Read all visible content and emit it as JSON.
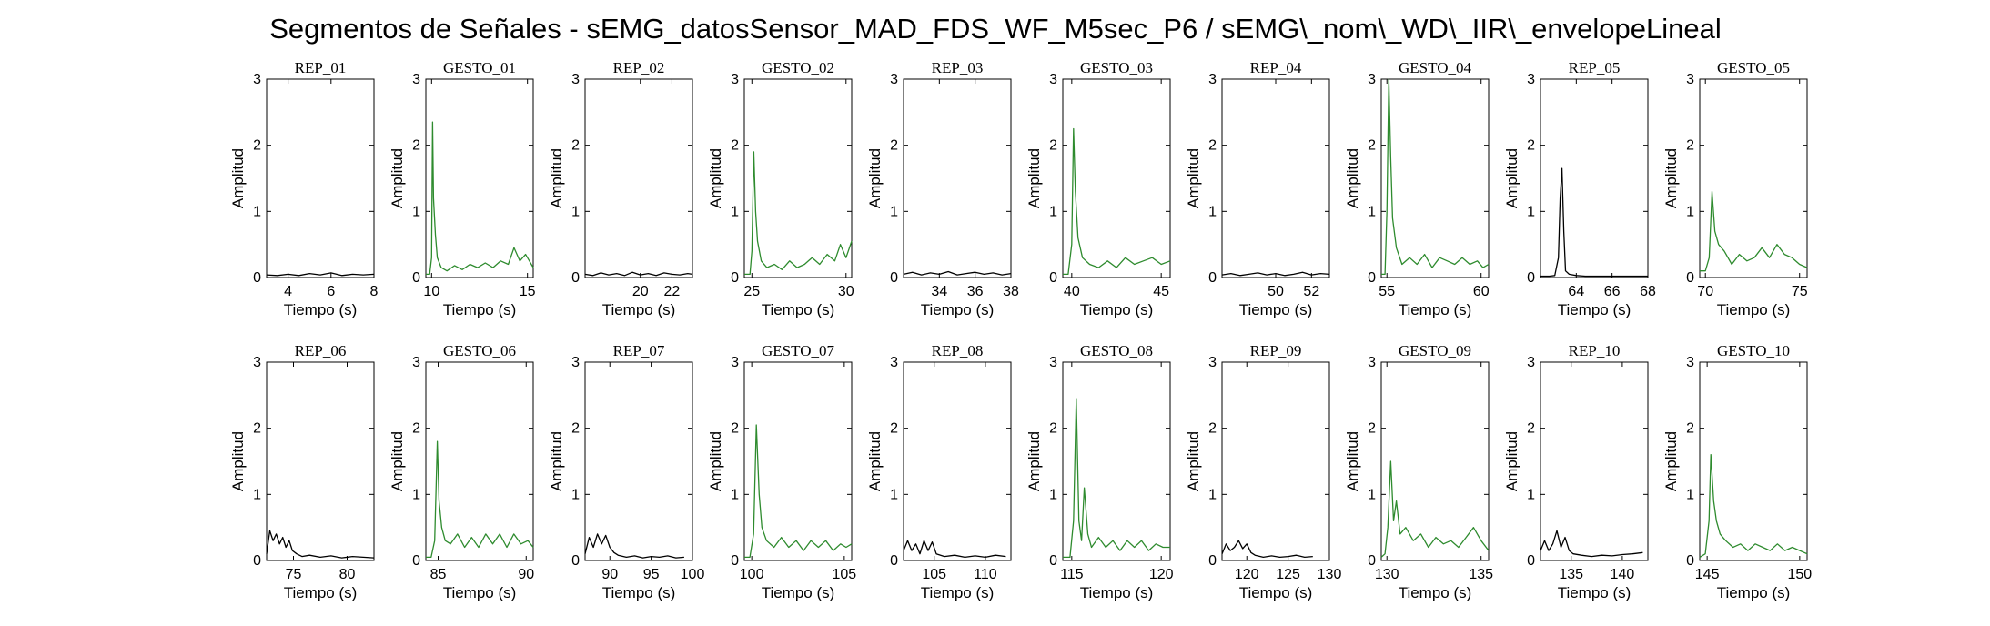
{
  "chart_data": {
    "type": "line",
    "title": "Segmentos de Señales - sEMG_datosSensor_MAD_FDS_WF_M5sec_P6 / sEMG\\_nom\\_WD\\_IIR\\_envelopeLineal",
    "xlabel": "Tiempo (s)",
    "ylabel": "Amplitud",
    "ylim": [
      0,
      3
    ],
    "yticks": [
      "0",
      "1",
      "2",
      "3"
    ],
    "grid": false,
    "colors": {
      "rep": "#000000",
      "gesto": "#2e8b2e",
      "axis": "#000000"
    },
    "panels": [
      {
        "title": "REP_01",
        "kind": "rep",
        "xlim": [
          3,
          8
        ],
        "xticks": [
          4,
          6,
          8
        ],
        "x": [
          3.0,
          3.5,
          4.0,
          4.5,
          5.0,
          5.5,
          6.0,
          6.5,
          7.0,
          7.5,
          8.0
        ],
        "y": [
          0.04,
          0.03,
          0.05,
          0.03,
          0.06,
          0.04,
          0.07,
          0.03,
          0.05,
          0.04,
          0.05
        ]
      },
      {
        "title": "GESTO_01",
        "kind": "gesto",
        "xlim": [
          9.7,
          15.3
        ],
        "xticks": [
          10,
          15
        ],
        "x": [
          9.7,
          9.9,
          10.0,
          10.05,
          10.1,
          10.2,
          10.3,
          10.5,
          10.8,
          11.2,
          11.6,
          12.0,
          12.4,
          12.8,
          13.2,
          13.6,
          14.0,
          14.3,
          14.6,
          14.9,
          15.3
        ],
        "y": [
          0.05,
          0.05,
          0.3,
          2.35,
          1.2,
          0.65,
          0.3,
          0.15,
          0.1,
          0.18,
          0.12,
          0.2,
          0.15,
          0.22,
          0.15,
          0.25,
          0.2,
          0.45,
          0.25,
          0.35,
          0.15
        ]
      },
      {
        "title": "REP_02",
        "kind": "rep",
        "xlim": [
          16.5,
          23.3
        ],
        "xticks": [
          20,
          22
        ],
        "x": [
          16.5,
          17.0,
          17.5,
          18.0,
          18.5,
          19.0,
          19.5,
          20.0,
          20.5,
          21.0,
          21.5,
          22.0,
          22.5,
          23.0,
          23.3
        ],
        "y": [
          0.05,
          0.03,
          0.07,
          0.04,
          0.06,
          0.03,
          0.08,
          0.04,
          0.06,
          0.03,
          0.07,
          0.05,
          0.04,
          0.06,
          0.05
        ]
      },
      {
        "title": "GESTO_02",
        "kind": "gesto",
        "xlim": [
          24.6,
          30.3
        ],
        "xticks": [
          25,
          30
        ],
        "x": [
          24.6,
          24.9,
          25.0,
          25.1,
          25.2,
          25.3,
          25.5,
          25.8,
          26.2,
          26.6,
          27.0,
          27.4,
          27.8,
          28.2,
          28.6,
          29.0,
          29.4,
          29.7,
          30.0,
          30.3
        ],
        "y": [
          0.05,
          0.05,
          0.4,
          1.9,
          1.0,
          0.55,
          0.25,
          0.15,
          0.2,
          0.12,
          0.25,
          0.15,
          0.2,
          0.3,
          0.2,
          0.35,
          0.25,
          0.5,
          0.3,
          0.55
        ]
      },
      {
        "title": "REP_03",
        "kind": "rep",
        "xlim": [
          32,
          38
        ],
        "xticks": [
          34,
          36,
          38
        ],
        "x": [
          32.0,
          32.5,
          33.0,
          33.5,
          34.0,
          34.5,
          35.0,
          35.5,
          36.0,
          36.5,
          37.0,
          37.5,
          38.0
        ],
        "y": [
          0.05,
          0.08,
          0.04,
          0.07,
          0.05,
          0.09,
          0.04,
          0.06,
          0.08,
          0.05,
          0.07,
          0.04,
          0.06
        ]
      },
      {
        "title": "GESTO_03",
        "kind": "gesto",
        "xlim": [
          39.5,
          45.5
        ],
        "xticks": [
          40,
          45
        ],
        "x": [
          39.5,
          39.8,
          40.0,
          40.1,
          40.2,
          40.35,
          40.6,
          41.0,
          41.5,
          42.0,
          42.5,
          43.0,
          43.5,
          44.0,
          44.5,
          45.0,
          45.5
        ],
        "y": [
          0.05,
          0.05,
          0.5,
          2.25,
          1.3,
          0.6,
          0.3,
          0.2,
          0.15,
          0.25,
          0.15,
          0.3,
          0.2,
          0.25,
          0.3,
          0.2,
          0.25
        ]
      },
      {
        "title": "REP_04",
        "kind": "rep",
        "xlim": [
          47,
          53
        ],
        "xticks": [
          50,
          52
        ],
        "x": [
          47.0,
          47.5,
          48.0,
          48.5,
          49.0,
          49.5,
          50.0,
          50.5,
          51.0,
          51.5,
          52.0,
          52.5,
          53.0
        ],
        "y": [
          0.04,
          0.06,
          0.03,
          0.05,
          0.07,
          0.04,
          0.06,
          0.03,
          0.05,
          0.08,
          0.04,
          0.06,
          0.05
        ]
      },
      {
        "title": "GESTO_04",
        "kind": "gesto",
        "xlim": [
          54.7,
          60.4
        ],
        "xticks": [
          55,
          60
        ],
        "x": [
          54.7,
          54.9,
          55.0,
          55.1,
          55.2,
          55.3,
          55.5,
          55.8,
          56.2,
          56.6,
          57.0,
          57.4,
          57.8,
          58.2,
          58.6,
          59.0,
          59.4,
          59.8,
          60.1,
          60.4
        ],
        "y": [
          0.05,
          0.05,
          1.0,
          3.0,
          1.8,
          0.9,
          0.45,
          0.2,
          0.3,
          0.2,
          0.35,
          0.15,
          0.3,
          0.25,
          0.2,
          0.3,
          0.2,
          0.25,
          0.15,
          0.2
        ]
      },
      {
        "title": "REP_05",
        "kind": "rep",
        "xlim": [
          62,
          68
        ],
        "xticks": [
          64,
          66,
          68
        ],
        "x": [
          62.0,
          62.5,
          62.8,
          63.0,
          63.1,
          63.2,
          63.3,
          63.4,
          63.6,
          64.0,
          64.5,
          65.0,
          66.0,
          67.0,
          68.0
        ],
        "y": [
          0.02,
          0.02,
          0.03,
          0.3,
          1.2,
          1.65,
          0.7,
          0.1,
          0.05,
          0.03,
          0.02,
          0.02,
          0.02,
          0.02,
          0.02
        ]
      },
      {
        "title": "GESTO_05",
        "kind": "gesto",
        "xlim": [
          69.7,
          75.4
        ],
        "xticks": [
          70,
          75
        ],
        "x": [
          69.7,
          70.0,
          70.2,
          70.35,
          70.5,
          70.7,
          71.0,
          71.4,
          71.8,
          72.2,
          72.6,
          73.0,
          73.4,
          73.8,
          74.2,
          74.6,
          75.0,
          75.4
        ],
        "y": [
          0.1,
          0.1,
          0.3,
          1.3,
          0.7,
          0.5,
          0.4,
          0.2,
          0.35,
          0.25,
          0.3,
          0.45,
          0.3,
          0.5,
          0.35,
          0.3,
          0.2,
          0.15
        ]
      },
      {
        "title": "REP_06",
        "kind": "rep",
        "xlim": [
          72.5,
          82.5
        ],
        "xticks": [
          75,
          80
        ],
        "x": [
          72.5,
          72.8,
          73.1,
          73.4,
          73.7,
          74.0,
          74.3,
          74.6,
          74.9,
          75.3,
          75.8,
          76.5,
          77.5,
          78.5,
          79.5,
          80.5,
          81.5,
          82.5
        ],
        "y": [
          0.1,
          0.45,
          0.3,
          0.4,
          0.25,
          0.35,
          0.2,
          0.3,
          0.15,
          0.1,
          0.06,
          0.08,
          0.05,
          0.07,
          0.04,
          0.06,
          0.05,
          0.04
        ]
      },
      {
        "title": "GESTO_06",
        "kind": "gesto",
        "xlim": [
          84.3,
          90.4
        ],
        "xticks": [
          85,
          90
        ],
        "x": [
          84.3,
          84.6,
          84.8,
          84.95,
          85.05,
          85.2,
          85.4,
          85.7,
          86.1,
          86.5,
          86.9,
          87.3,
          87.7,
          88.1,
          88.5,
          88.9,
          89.3,
          89.7,
          90.1,
          90.4
        ],
        "y": [
          0.05,
          0.05,
          0.3,
          1.8,
          0.9,
          0.5,
          0.3,
          0.25,
          0.4,
          0.2,
          0.35,
          0.2,
          0.4,
          0.25,
          0.4,
          0.2,
          0.4,
          0.25,
          0.3,
          0.2
        ]
      },
      {
        "title": "REP_07",
        "kind": "rep",
        "xlim": [
          87,
          100
        ],
        "xticks": [
          90,
          95,
          100
        ],
        "x": [
          87.0,
          87.5,
          88.0,
          88.5,
          89.0,
          89.5,
          90.0,
          90.5,
          91.0,
          92.0,
          93.0,
          94.0,
          95.0,
          96.0,
          97.0,
          98.0,
          99.0
        ],
        "y": [
          0.1,
          0.35,
          0.2,
          0.4,
          0.25,
          0.38,
          0.2,
          0.12,
          0.08,
          0.05,
          0.07,
          0.04,
          0.06,
          0.05,
          0.07,
          0.04,
          0.05
        ]
      },
      {
        "title": "GESTO_07",
        "kind": "gesto",
        "xlim": [
          99.6,
          105.4
        ],
        "xticks": [
          100,
          105
        ],
        "x": [
          99.6,
          99.9,
          100.1,
          100.25,
          100.4,
          100.55,
          100.8,
          101.2,
          101.6,
          102.0,
          102.4,
          102.8,
          103.2,
          103.6,
          104.0,
          104.4,
          104.8,
          105.1,
          105.4
        ],
        "y": [
          0.05,
          0.05,
          0.4,
          2.05,
          1.0,
          0.5,
          0.3,
          0.2,
          0.35,
          0.2,
          0.3,
          0.15,
          0.3,
          0.2,
          0.3,
          0.15,
          0.25,
          0.2,
          0.25
        ]
      },
      {
        "title": "REP_08",
        "kind": "rep",
        "xlim": [
          102,
          112.5
        ],
        "xticks": [
          105,
          110
        ],
        "x": [
          102.0,
          102.4,
          102.8,
          103.2,
          103.6,
          104.0,
          104.4,
          104.8,
          105.2,
          106.0,
          107.0,
          108.0,
          109.0,
          110.0,
          111.0,
          112.0
        ],
        "y": [
          0.15,
          0.3,
          0.15,
          0.25,
          0.1,
          0.3,
          0.15,
          0.28,
          0.1,
          0.06,
          0.08,
          0.05,
          0.07,
          0.05,
          0.08,
          0.06
        ]
      },
      {
        "title": "GESTO_08",
        "kind": "gesto",
        "xlim": [
          114.5,
          120.5
        ],
        "xticks": [
          115,
          120
        ],
        "x": [
          114.5,
          114.9,
          115.1,
          115.25,
          115.4,
          115.55,
          115.7,
          115.9,
          116.1,
          116.5,
          116.9,
          117.3,
          117.7,
          118.1,
          118.5,
          118.9,
          119.3,
          119.7,
          120.1,
          120.5
        ],
        "y": [
          0.05,
          0.05,
          0.6,
          2.45,
          0.6,
          0.3,
          1.1,
          0.4,
          0.2,
          0.35,
          0.2,
          0.3,
          0.15,
          0.3,
          0.2,
          0.3,
          0.15,
          0.25,
          0.2,
          0.2
        ]
      },
      {
        "title": "REP_09",
        "kind": "rep",
        "xlim": [
          117,
          130
        ],
        "xticks": [
          120,
          125,
          130
        ],
        "x": [
          117.0,
          117.5,
          118.0,
          118.5,
          119.0,
          119.5,
          120.0,
          120.5,
          121.0,
          122.0,
          123.0,
          124.0,
          125.0,
          126.0,
          127.0,
          128.0
        ],
        "y": [
          0.1,
          0.25,
          0.15,
          0.2,
          0.3,
          0.18,
          0.25,
          0.12,
          0.08,
          0.05,
          0.07,
          0.05,
          0.06,
          0.08,
          0.05,
          0.06
        ]
      },
      {
        "title": "GESTO_09",
        "kind": "gesto",
        "xlim": [
          129.7,
          135.4
        ],
        "xticks": [
          130,
          135
        ],
        "x": [
          129.7,
          129.9,
          130.05,
          130.2,
          130.35,
          130.5,
          130.7,
          131.0,
          131.4,
          131.8,
          132.2,
          132.6,
          133.0,
          133.4,
          133.8,
          134.2,
          134.6,
          135.0,
          135.4
        ],
        "y": [
          0.05,
          0.1,
          0.5,
          1.5,
          0.6,
          0.9,
          0.4,
          0.5,
          0.3,
          0.4,
          0.2,
          0.35,
          0.25,
          0.3,
          0.2,
          0.35,
          0.5,
          0.3,
          0.15
        ]
      },
      {
        "title": "REP_10",
        "kind": "rep",
        "xlim": [
          132,
          142.5
        ],
        "xticks": [
          135,
          140
        ],
        "x": [
          132.0,
          132.4,
          132.8,
          133.2,
          133.6,
          134.0,
          134.4,
          134.8,
          135.2,
          136.0,
          137.0,
          138.0,
          139.0,
          140.0,
          141.0,
          142.0
        ],
        "y": [
          0.15,
          0.3,
          0.15,
          0.25,
          0.45,
          0.2,
          0.35,
          0.15,
          0.1,
          0.08,
          0.06,
          0.08,
          0.07,
          0.09,
          0.1,
          0.12
        ]
      },
      {
        "title": "GESTO_10",
        "kind": "gesto",
        "xlim": [
          144.6,
          150.4
        ],
        "xticks": [
          145,
          150
        ],
        "x": [
          144.6,
          144.9,
          145.1,
          145.2,
          145.35,
          145.5,
          145.7,
          146.0,
          146.4,
          146.8,
          147.2,
          147.6,
          148.0,
          148.4,
          148.8,
          149.2,
          149.6,
          150.0,
          150.4
        ],
        "y": [
          0.05,
          0.1,
          0.6,
          1.6,
          0.9,
          0.6,
          0.4,
          0.3,
          0.2,
          0.25,
          0.15,
          0.25,
          0.2,
          0.15,
          0.25,
          0.15,
          0.2,
          0.15,
          0.1
        ]
      }
    ]
  }
}
